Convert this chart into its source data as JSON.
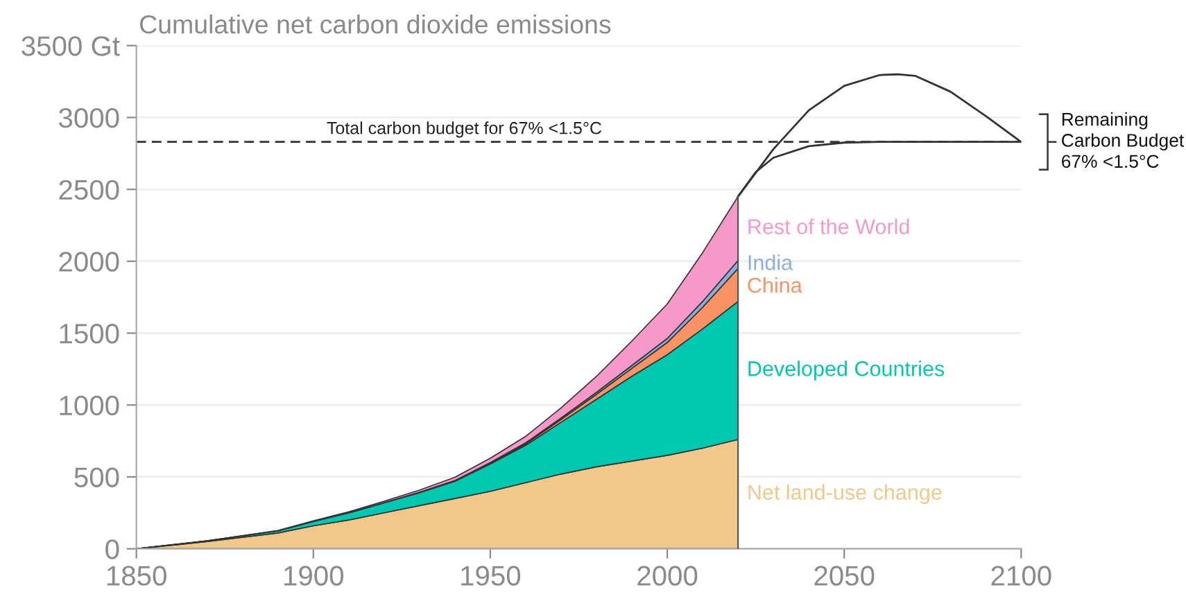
{
  "chart_data": {
    "type": "area",
    "stacked": true,
    "title": "Cumulative net carbon dioxide emissions",
    "x": [
      1850,
      1870,
      1890,
      1900,
      1910,
      1920,
      1930,
      1940,
      1950,
      1960,
      1970,
      1980,
      1990,
      2000,
      2010,
      2020
    ],
    "series": [
      {
        "name": "Net land-use change",
        "color": "#f0c98a",
        "values": [
          0,
          50,
          110,
          160,
          200,
          250,
          300,
          350,
          400,
          460,
          520,
          570,
          610,
          650,
          700,
          760
        ]
      },
      {
        "name": "Developed Countries",
        "color": "#00c8b0",
        "values": [
          0,
          5,
          15,
          30,
          50,
          70,
          90,
          120,
          190,
          260,
          360,
          470,
          590,
          700,
          830,
          960
        ]
      },
      {
        "name": "China",
        "color": "#f99363",
        "values": [
          0,
          0,
          0,
          0,
          0,
          0,
          1,
          2,
          5,
          10,
          20,
          35,
          55,
          85,
          150,
          230
        ]
      },
      {
        "name": "India",
        "color": "#8aaedf",
        "values": [
          0,
          0,
          0,
          0,
          0,
          1,
          2,
          3,
          5,
          7,
          10,
          14,
          20,
          28,
          40,
          55
        ]
      },
      {
        "name": "Rest of the World",
        "color": "#f799c8",
        "values": [
          0,
          1,
          2,
          4,
          7,
          10,
          15,
          22,
          30,
          45,
          70,
          110,
          170,
          240,
          340,
          445
        ]
      },
      {
        "type": "line",
        "color": "#333333",
        "x": [
          2020,
          2030,
          2040,
          2050,
          2060,
          2065,
          2070,
          2080,
          2090,
          2100
        ],
        "values": [
          2450,
          2780,
          3050,
          3220,
          3295,
          3300,
          3290,
          3180,
          3010,
          2830
        ]
      },
      {
        "type": "line",
        "color": "#333333",
        "x": [
          2020,
          2025,
          2030,
          2040,
          2050,
          2060,
          2100
        ],
        "values": [
          2450,
          2620,
          2720,
          2800,
          2825,
          2830,
          2830
        ]
      }
    ],
    "xlim": [
      1850,
      2100
    ],
    "xticks": [
      1850,
      1900,
      1950,
      2000,
      2050,
      2100
    ],
    "ylim": [
      0,
      3500
    ],
    "yticks": [
      0,
      500,
      1000,
      1500,
      2000,
      2500,
      3000,
      {
        "value": 3500,
        "label": "3500 Gt"
      }
    ],
    "grid": "y",
    "legend": false,
    "ref_lines": [
      {
        "axis": "y",
        "value": 2830,
        "label": "Total carbon budget for 67% <1.5°C",
        "color": "#333333",
        "line_style": "dashed"
      }
    ],
    "annotations": [
      {
        "text": "Remaining\nCarbon Budget\n67% <1.5°C",
        "x": 2100,
        "y": 2830
      }
    ]
  }
}
